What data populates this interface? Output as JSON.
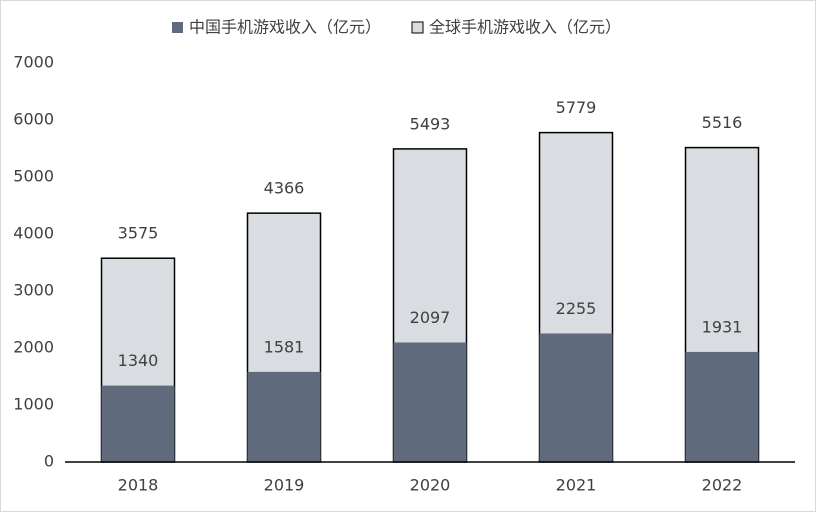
{
  "chart_data": {
    "type": "bar",
    "barmode": "overlay",
    "categories": [
      "2018",
      "2019",
      "2020",
      "2021",
      "2022"
    ],
    "series": [
      {
        "name": "中国手机游戏收入（亿元）",
        "color": "#5f6b7d",
        "values": [
          1340,
          1581,
          2097,
          2255,
          1931
        ]
      },
      {
        "name": "全球手机游戏收入（亿元）",
        "color": "#d9dce1",
        "stroke": "#000000",
        "values": [
          3575,
          4366,
          5493,
          5779,
          5516
        ]
      }
    ],
    "ylim": [
      0,
      7000
    ],
    "yticks": [
      0,
      1000,
      2000,
      3000,
      4000,
      5000,
      6000,
      7000
    ],
    "grid": false,
    "legend": "top"
  }
}
